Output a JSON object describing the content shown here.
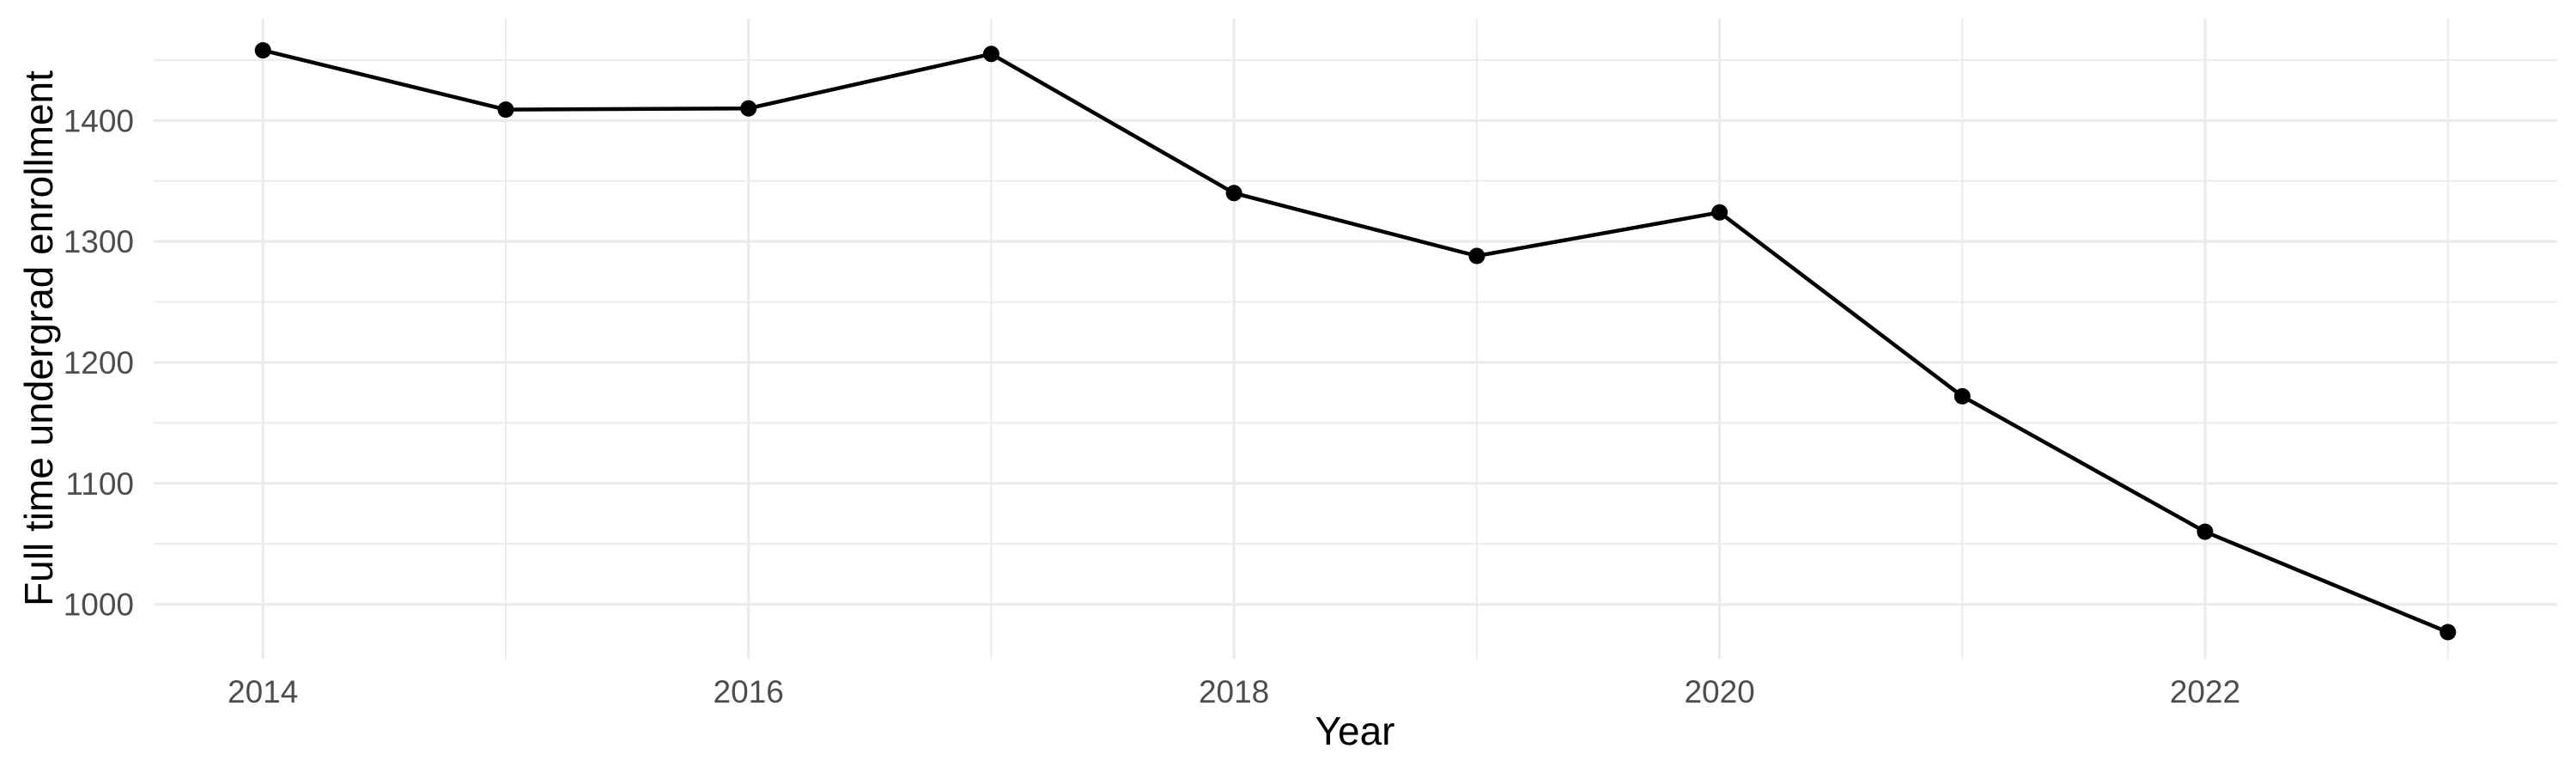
{
  "chart_data": {
    "type": "line",
    "title": "",
    "xlabel": "Year",
    "ylabel": "Full time undergrad enrollment",
    "series": [
      {
        "name": "Full time undergrad enrollment",
        "x": [
          2014,
          2015,
          2016,
          2017,
          2018,
          2019,
          2020,
          2021,
          2022,
          2023
        ],
        "values": [
          1458,
          1409,
          1410,
          1455,
          1340,
          1288,
          1324,
          1172,
          1060,
          977
        ]
      }
    ],
    "xlim": [
      2013.55,
      2023.45
    ],
    "ylim": [
      955,
      1484
    ],
    "x_major_breaks": [
      2014,
      2016,
      2018,
      2020,
      2022
    ],
    "x_tick_labels": [
      "2014",
      "2016",
      "2018",
      "2020",
      "2022"
    ],
    "x_minor_breaks": [
      2015,
      2017,
      2019,
      2021,
      2023
    ],
    "y_major_breaks": [
      1000,
      1100,
      1200,
      1300,
      1400
    ],
    "y_tick_labels": [
      "1000",
      "1100",
      "1200",
      "1300",
      "1400"
    ],
    "y_minor_breaks": [
      1050,
      1150,
      1250,
      1350,
      1450
    ],
    "grid": true,
    "legend_position": "none",
    "point_marker": "filled-circle",
    "colors": {
      "line": "#000000",
      "point": "#000000",
      "grid_major": "#EBEBEB",
      "grid_minor": "#EBEBEB",
      "tick_label": "#4D4D4D",
      "axis_title": "#000000",
      "background": "#FFFFFF"
    }
  }
}
